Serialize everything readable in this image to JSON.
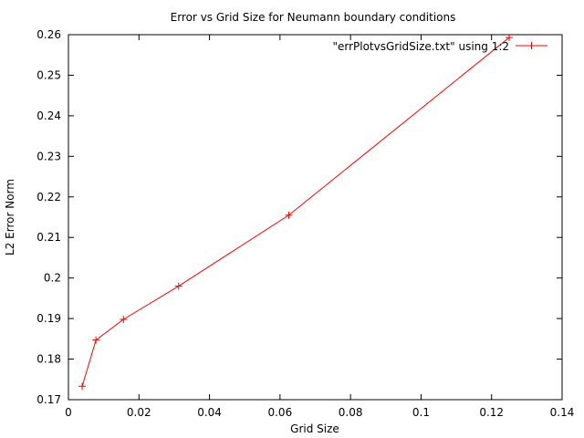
{
  "chart_data": {
    "type": "line",
    "title": "Error vs Grid Size for Neumann boundary conditions",
    "xlabel": "Grid Size",
    "ylabel": "L2 Error Norm",
    "xlim": [
      0,
      0.14
    ],
    "ylim": [
      0.17,
      0.26
    ],
    "xticks": [
      0,
      0.02,
      0.04,
      0.06,
      0.08,
      0.1,
      0.12,
      0.14
    ],
    "xtick_labels": [
      "0",
      "0.02",
      "0.04",
      "0.06",
      "0.08",
      "0.1",
      "0.12",
      "0.14"
    ],
    "yticks": [
      0.17,
      0.18,
      0.19,
      0.2,
      0.21,
      0.22,
      0.23,
      0.24,
      0.25,
      0.26
    ],
    "ytick_labels": [
      "0.17",
      "0.18",
      "0.19",
      "0.2",
      "0.21",
      "0.22",
      "0.23",
      "0.24",
      "0.25",
      "0.26"
    ],
    "grid": false,
    "legend_position": "top-right",
    "series": [
      {
        "name": "\"errPlotvsGridSize.txt\" using 1:2",
        "color": "#ff0000",
        "marker": "plus",
        "x": [
          0.0039,
          0.0078,
          0.0156,
          0.03125,
          0.0625,
          0.125
        ],
        "y": [
          0.1733,
          0.1847,
          0.1898,
          0.198,
          0.2155,
          0.2593
        ]
      }
    ]
  }
}
